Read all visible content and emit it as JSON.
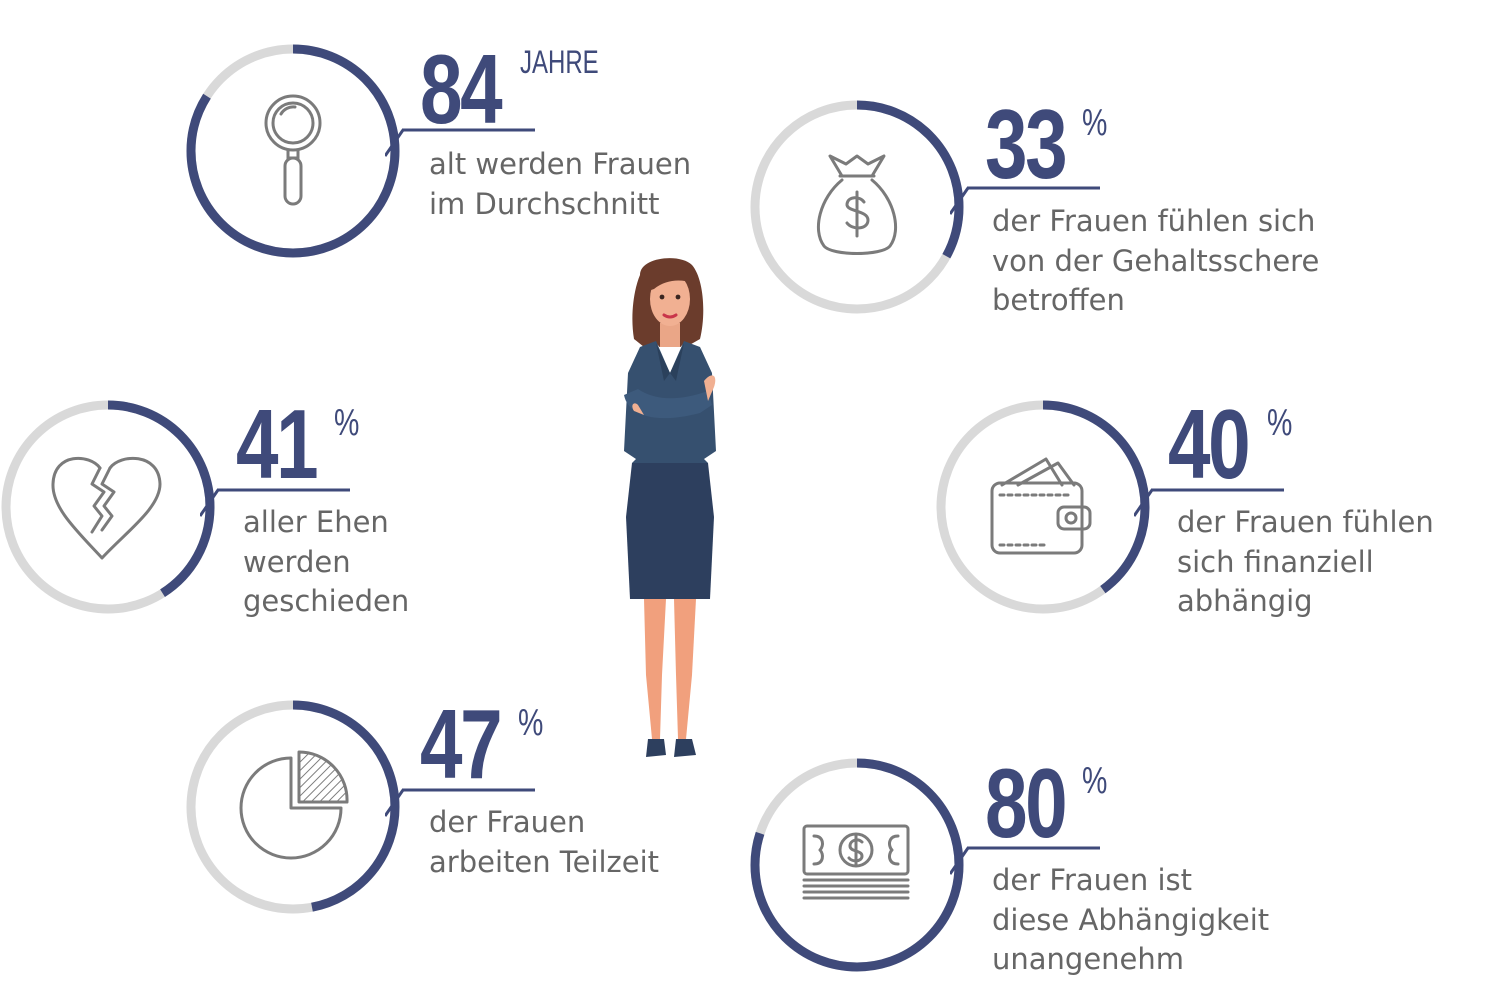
{
  "colors": {
    "accent": "#3f4a7a",
    "track": "#d9d9d9",
    "text": "#666666",
    "icon": "#7b7b7b"
  },
  "stats": [
    {
      "id": "lifespan",
      "value": "84",
      "unit": "JAHRE",
      "progress": 0.84,
      "icon": "magnifier-icon",
      "desc": "alt werden Frauen\nim Durchschnitt"
    },
    {
      "id": "gender-pay-gap",
      "value": "33",
      "unit": "%",
      "progress": 0.33,
      "icon": "money-bag-icon",
      "desc": "der Frauen fühlen sich\nvon der Gehaltsschere\nbetroffen"
    },
    {
      "id": "divorce",
      "value": "41",
      "unit": "%",
      "progress": 0.41,
      "icon": "broken-heart-icon",
      "desc": "aller Ehen\nwerden\ngeschieden"
    },
    {
      "id": "financial-dependence",
      "value": "40",
      "unit": "%",
      "progress": 0.4,
      "icon": "wallet-icon",
      "desc": "der Frauen fühlen\nsich finanziell\nabhängig"
    },
    {
      "id": "part-time",
      "value": "47",
      "unit": "%",
      "progress": 0.47,
      "icon": "pie-chart-icon",
      "desc": "der Frauen\narbeiten Teilzeit"
    },
    {
      "id": "dependence-uncomfortable",
      "value": "80",
      "unit": "%",
      "progress": 0.8,
      "icon": "cash-stack-icon",
      "desc": "der Frauen ist\ndiese Abhängigkeit\nunangenehm"
    }
  ],
  "illustration": {
    "icon": "businesswoman-illustration"
  }
}
